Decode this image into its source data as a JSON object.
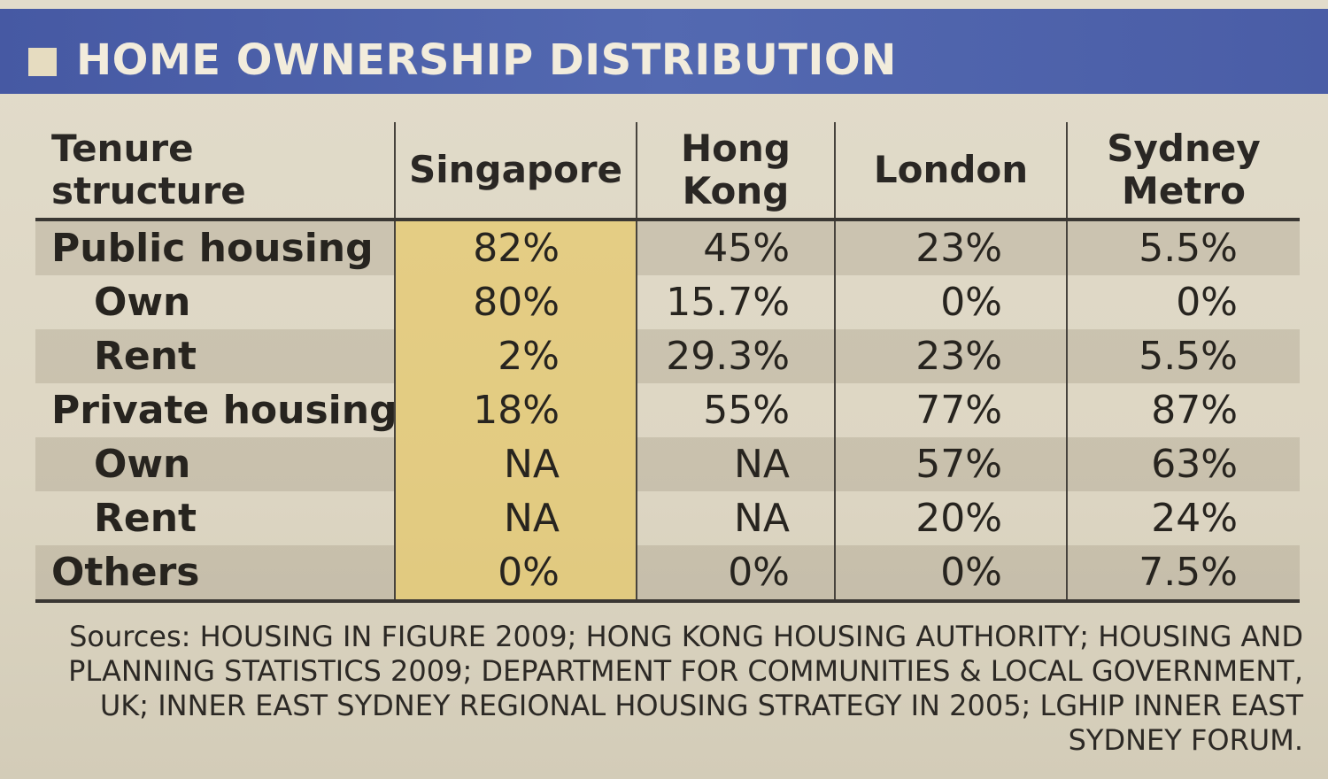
{
  "title": "HOME OWNERSHIP DISTRIBUTION",
  "chart_data": {
    "type": "table",
    "title": "HOME OWNERSHIP DISTRIBUTION",
    "columns": [
      "Tenure structure",
      "Singapore",
      "Hong Kong",
      "London",
      "Sydney Metro"
    ],
    "rows": [
      {
        "label": "Public housing",
        "indent": false,
        "values": [
          "82%",
          "45%",
          "23%",
          "5.5%"
        ]
      },
      {
        "label": "Own",
        "indent": true,
        "values": [
          "80%",
          "15.7%",
          "0%",
          "0%"
        ]
      },
      {
        "label": "Rent",
        "indent": true,
        "values": [
          "2%",
          "29.3%",
          "23%",
          "5.5%"
        ]
      },
      {
        "label": "Private housing",
        "indent": false,
        "values": [
          "18%",
          "55%",
          "77%",
          "87%"
        ]
      },
      {
        "label": "Own",
        "indent": true,
        "values": [
          "NA",
          "NA",
          "57%",
          "63%"
        ]
      },
      {
        "label": "Rent",
        "indent": true,
        "values": [
          "NA",
          "NA",
          "20%",
          "24%"
        ]
      },
      {
        "label": "Others",
        "indent": false,
        "values": [
          "0%",
          "0%",
          "0%",
          "7.5%"
        ]
      }
    ],
    "highlight_column": "Singapore",
    "highlight_color": "#e8c24c"
  },
  "colors": {
    "header_bar": "#4a5da6",
    "header_text": "#f2ecdc",
    "background": "#ddd6c3",
    "highlight": "#e8c24c"
  },
  "sources": "Sources: HOUSING IN FIGURE 2009; HONG KONG HOUSING AUTHORITY; HOUSING AND PLANNING STATISTICS 2009; DEPARTMENT FOR COMMUNITIES & LOCAL GOVERNMENT, UK; INNER EAST SYDNEY REGIONAL HOUSING STRATEGY IN 2005; LGHIP INNER EAST SYDNEY FORUM."
}
